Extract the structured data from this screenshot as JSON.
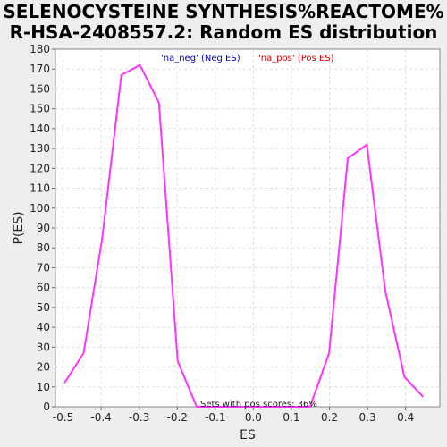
{
  "chart_data": {
    "type": "line",
    "title_lines": [
      "SELENOCYSTEINE SYNTHESIS%REACTOME%",
      "R-HSA-2408557.2: Random ES distribution"
    ],
    "xlabel": "ES",
    "ylabel": "P(ES)",
    "xlim": [
      -0.52,
      0.49
    ],
    "ylim": [
      0,
      180
    ],
    "xticks": [
      -0.5,
      -0.4,
      -0.3,
      -0.2,
      -0.1,
      0.0,
      0.1,
      0.2,
      0.3,
      0.4
    ],
    "xtick_labels": [
      "-0.5",
      "-0.4",
      "-0.3",
      "-0.2",
      "-0.1",
      "0.0",
      "0.1",
      "0.2",
      "0.3",
      "0.4"
    ],
    "yticks": [
      0,
      10,
      20,
      30,
      40,
      50,
      60,
      70,
      80,
      90,
      100,
      110,
      120,
      130,
      140,
      150,
      160,
      170,
      180
    ],
    "grid": true,
    "legend_position": "top-center",
    "legend": [
      {
        "label": "'na_neg' (Neg ES)",
        "color": "#0000cc"
      },
      {
        "label": "'na_pos' (Pos ES)",
        "color": "#cc0000"
      }
    ],
    "annotation": "Sets with pos scores: 36%",
    "series": [
      {
        "color": "#ff33ff",
        "x": [
          -0.496,
          -0.446,
          -0.397,
          -0.347,
          -0.298,
          -0.248,
          -0.199,
          -0.149,
          -0.1,
          0.0,
          0.1,
          0.149,
          0.199,
          0.248,
          0.298,
          0.347,
          0.397,
          0.446
        ],
        "y": [
          12,
          27,
          85,
          167,
          172,
          153,
          23,
          0,
          0,
          0,
          0,
          0,
          27,
          125,
          132,
          58,
          15,
          5
        ]
      }
    ]
  }
}
